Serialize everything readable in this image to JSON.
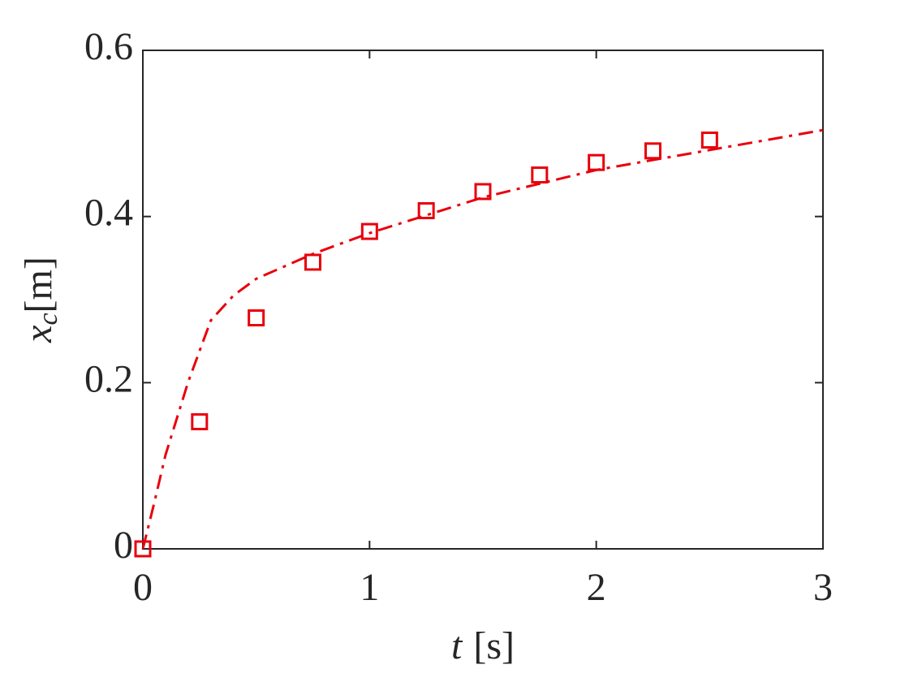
{
  "chart_data": {
    "type": "scatter",
    "xlabel": {
      "symbol": "t",
      "unit": "[s]"
    },
    "ylabel": {
      "symbol": "x",
      "subscript": "c",
      "unit": "[m]"
    },
    "xlim": [
      0,
      3
    ],
    "xticks": [
      0,
      1,
      2,
      3
    ],
    "ylim": [
      0,
      0.6
    ],
    "yticks": [
      0,
      0.2,
      0.4,
      0.6
    ],
    "grid": false,
    "series": [
      {
        "type": "scatter",
        "marker": "square",
        "color": "#e8000b",
        "x": [
          0,
          0.25,
          0.5,
          0.75,
          1,
          1.25,
          1.5,
          1.75,
          2,
          2.25,
          2.5
        ],
        "values": [
          0,
          0.153,
          0.278,
          0.345,
          0.382,
          0.407,
          0.43,
          0.45,
          0.465,
          0.479,
          0.492
        ]
      },
      {
        "type": "line",
        "style": "dash-dot",
        "color": "#e8000b",
        "x": [
          0,
          0.05,
          0.1,
          0.2,
          0.3,
          0.4,
          0.5,
          0.75,
          1,
          1.5,
          2,
          2.5,
          3
        ],
        "values": [
          0,
          0.055,
          0.113,
          0.201,
          0.275,
          0.305,
          0.325,
          0.355,
          0.38,
          0.423,
          0.456,
          0.48,
          0.504
        ]
      }
    ]
  }
}
